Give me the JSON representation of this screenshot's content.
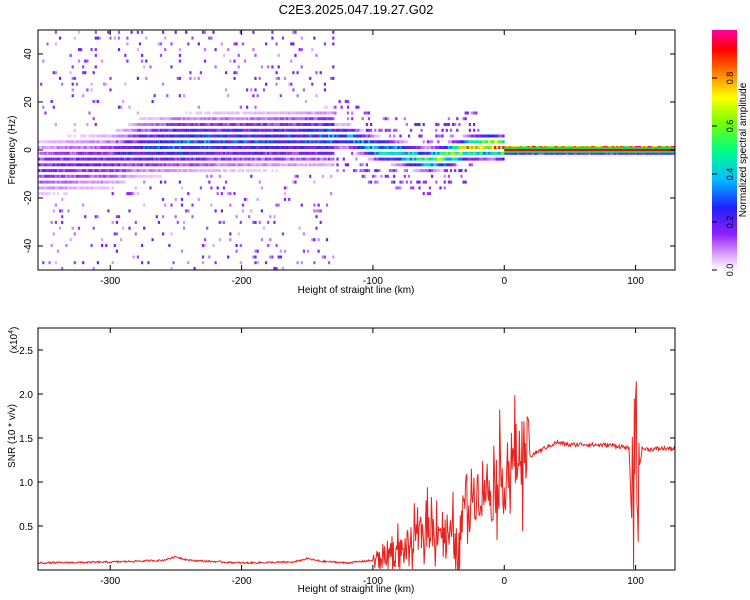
{
  "title": "C2E3.2025.047.19.27.G02",
  "chart_data": [
    {
      "type": "heatmap",
      "xlabel": "Height of straight line (km)",
      "ylabel": "Frequency (Hz)",
      "xlim": [
        -355,
        130
      ],
      "ylim": [
        -50,
        50
      ],
      "xticks": [
        -300,
        -200,
        -100,
        0,
        100
      ],
      "yticks": [
        -40,
        -20,
        0,
        20,
        40
      ],
      "colorbar": {
        "label": "Normalized spectral amplitude",
        "ticks": [
          0.0,
          0.2,
          0.4,
          0.6,
          0.8
        ],
        "tick_labels": [
          "0.0",
          "0.2",
          "0.4",
          "0.6",
          "0.8"
        ],
        "range": [
          0,
          1
        ],
        "colors": [
          "#ffffff",
          "#c060ff",
          "#2020ff",
          "#00c0ff",
          "#00ff80",
          "#80ff00",
          "#ffff00",
          "#ff8000",
          "#ff0000",
          "#ff00ff"
        ]
      },
      "tone_line": {
        "from_x": 0,
        "to_x": 130,
        "frequency": 0,
        "amplitude": 1.0,
        "color": "#ff0000"
      },
      "band_center": [
        [
          -355,
          -8
        ],
        [
          -300,
          -5
        ],
        [
          -280,
          0
        ],
        [
          -250,
          2
        ],
        [
          -200,
          3
        ],
        [
          -150,
          4
        ],
        [
          -120,
          5
        ],
        [
          -100,
          0
        ],
        [
          -80,
          -2
        ],
        [
          -60,
          -5
        ],
        [
          -45,
          -3
        ],
        [
          -30,
          0
        ],
        [
          -10,
          1
        ],
        [
          0,
          0
        ],
        [
          130,
          0
        ]
      ],
      "band_amplitude": [
        [
          -355,
          0.2
        ],
        [
          -300,
          0.22
        ],
        [
          -250,
          0.35
        ],
        [
          -200,
          0.3
        ],
        [
          -150,
          0.3
        ],
        [
          -120,
          0.4
        ],
        [
          -100,
          0.5
        ],
        [
          -80,
          0.55
        ],
        [
          -60,
          0.6
        ],
        [
          -40,
          0.75
        ],
        [
          -20,
          0.85
        ],
        [
          0,
          0.95
        ],
        [
          130,
          1.0
        ]
      ]
    },
    {
      "type": "line",
      "xlabel": "Height of straight line (km)",
      "ylabel": "SNR (10 * v/v)",
      "y_multiplier": "(x10",
      "y_multiplier_exp": "4",
      "y_multiplier_close": ")",
      "xlim": [
        -355,
        130
      ],
      "ylim": [
        0,
        2.75
      ],
      "xticks": [
        -300,
        -200,
        -100,
        0,
        100
      ],
      "yticks": [
        0.5,
        1.0,
        1.5,
        2.0,
        2.5
      ],
      "ytick_labels": [
        "0.5",
        "1.0",
        "1.5",
        "2.0",
        "2.5"
      ],
      "color": "#e8221e",
      "series": [
        {
          "x": [
            -355,
            -300,
            -260,
            -250,
            -240,
            -200,
            -160,
            -150,
            -140,
            -120,
            -100,
            -90,
            -80,
            -70,
            -60,
            -50,
            -40,
            -35,
            -30,
            -25,
            -20,
            -15,
            -10,
            -5,
            0,
            5,
            10,
            15,
            20,
            30,
            40,
            50,
            60,
            70,
            80,
            90,
            95,
            98,
            100,
            102,
            105,
            110,
            120,
            130
          ],
          "y": [
            0.05,
            0.06,
            0.08,
            0.12,
            0.08,
            0.05,
            0.06,
            0.1,
            0.07,
            0.05,
            0.08,
            0.18,
            0.2,
            0.3,
            0.45,
            0.5,
            0.35,
            0.15,
            0.8,
            0.85,
            0.9,
            1.0,
            0.85,
            1.05,
            1.0,
            1.2,
            1.3,
            1.35,
            1.3,
            1.38,
            1.45,
            1.42,
            1.43,
            1.42,
            1.42,
            1.4,
            1.38,
            0.2,
            2.6,
            1.1,
            1.38,
            1.37,
            1.38,
            1.38
          ]
        }
      ]
    }
  ]
}
